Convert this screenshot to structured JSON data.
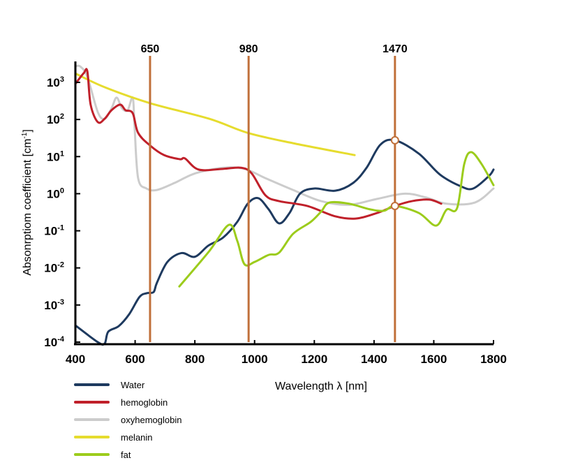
{
  "chart_data": {
    "type": "line",
    "title": "",
    "xlabel": "Wavelength λ [nm]",
    "ylabel": "Absonrptiom coefficient [cm-1]",
    "ylabel_main": "Absonrptiom coefficient [cm",
    "ylabel_sup": "-1",
    "ylabel_end": "]",
    "xlim": [
      400,
      1800
    ],
    "ylim_log10": [
      -4,
      3.3
    ],
    "yscale": "log",
    "x_ticks": [
      400,
      600,
      800,
      1000,
      1200,
      1400,
      1600,
      1800
    ],
    "x_tick_labels": [
      "400",
      "600",
      "800",
      "1000",
      "1200",
      "1400",
      "1600",
      "1800"
    ],
    "y_ticks_exp": [
      "3",
      "2",
      "1",
      "0",
      "-1",
      "-2",
      "-3",
      "-4"
    ],
    "y_tick_base": "10",
    "grid": false,
    "legend_position": "bottom-left",
    "markers": [
      {
        "x": 650,
        "label": "650"
      },
      {
        "x": 980,
        "label": "980"
      },
      {
        "x": 1470,
        "label": "1470"
      }
    ],
    "marker_color": "#c0703a",
    "series": [
      {
        "name": "Water",
        "color": "#1e3a5f",
        "x": [
          400,
          475,
          498,
          510,
          545,
          580,
          615,
          640,
          662,
          673,
          708,
          755,
          800,
          845,
          895,
          942,
          977,
          1012,
          1047,
          1082,
          1117,
          1152,
          1200,
          1270,
          1330,
          1375,
          1421,
          1470,
          1550,
          1620,
          1690,
          1732,
          1785,
          1800
        ],
        "log10_y": [
          -3.55,
          -4,
          -4.04,
          -3.72,
          -3.57,
          -3.25,
          -2.78,
          -2.68,
          -2.65,
          -2.4,
          -1.84,
          -1.6,
          -1.7,
          -1.4,
          -1.18,
          -0.76,
          -0.27,
          -0.12,
          -0.42,
          -0.8,
          -0.52,
          0,
          0.14,
          0.08,
          0.29,
          0.7,
          1.32,
          1.44,
          1.08,
          0.52,
          0.2,
          0.14,
          0.48,
          0.65
        ]
      },
      {
        "name": "hemoglobin",
        "color": "#c0202a",
        "x": [
          400,
          428,
          440,
          451,
          475,
          498,
          521,
          550,
          568,
          592,
          610,
          650,
          697,
          750,
          767,
          813,
          895,
          954,
          990,
          1036,
          1082,
          1176,
          1270,
          1340,
          1410,
          1470,
          1527,
          1585,
          1625
        ],
        "log10_y": [
          2.96,
          3.25,
          3.3,
          2.4,
          1.93,
          2.02,
          2.25,
          2.4,
          2.25,
          2.17,
          1.64,
          1.3,
          1.04,
          0.93,
          0.95,
          0.65,
          0.67,
          0.7,
          0.55,
          -0.04,
          -0.2,
          -0.33,
          -0.61,
          -0.67,
          -0.52,
          -0.33,
          -0.2,
          -0.16,
          -0.27
        ]
      },
      {
        "name": "oxyhemoglobin",
        "color": "#cccccc",
        "x": [
          400,
          416,
          440,
          475,
          498,
          521,
          538,
          556,
          575,
          592,
          598,
          610,
          638,
          673,
          732,
          802,
          895,
          966,
          1036,
          1129,
          1223,
          1316,
          1410,
          1503,
          1573,
          1643,
          1737,
          1800
        ],
        "log10_y": [
          3.43,
          3.43,
          3.15,
          2.2,
          2.02,
          2.3,
          2.59,
          2.3,
          2.25,
          2.59,
          1.83,
          0.42,
          0.14,
          0.1,
          0.29,
          0.55,
          0.7,
          0.67,
          0.42,
          0.1,
          -0.2,
          -0.3,
          -0.14,
          0,
          -0.1,
          -0.27,
          -0.24,
          0.14
        ]
      },
      {
        "name": "melanin",
        "color": "#e6dc2e",
        "x": [
          400,
          498,
          650,
          848,
          977,
          1129,
          1335
        ],
        "log10_y": [
          3.24,
          2.87,
          2.44,
          2.02,
          1.64,
          1.36,
          1.04
        ]
      },
      {
        "name": "fat",
        "color": "#9ccc1c",
        "x": [
          748,
          848,
          914,
          942,
          966,
          1000,
          1047,
          1082,
          1129,
          1188,
          1223,
          1250,
          1316,
          1386,
          1433,
          1470,
          1550,
          1608,
          1643,
          1678,
          1702,
          1725,
          1760,
          1800
        ],
        "log10_y": [
          -2.5,
          -1.55,
          -0.84,
          -1.27,
          -1.9,
          -1.84,
          -1.65,
          -1.59,
          -1.08,
          -0.76,
          -0.48,
          -0.24,
          -0.27,
          -0.42,
          -0.46,
          -0.33,
          -0.52,
          -0.86,
          -0.43,
          -0.39,
          0.8,
          1.12,
          0.8,
          0.23
        ]
      }
    ],
    "intersection_points": [
      {
        "series": "Water",
        "x": 1470,
        "log10_y": 1.44
      },
      {
        "series": "hemoglobin",
        "x": 1470,
        "log10_y": -0.33
      }
    ]
  }
}
